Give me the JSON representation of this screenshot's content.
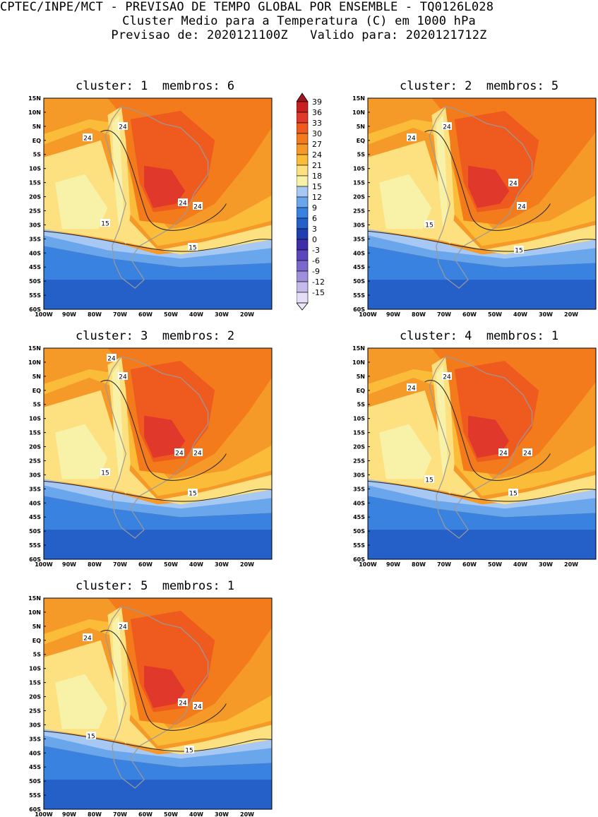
{
  "header": {
    "line1": "CPTEC/INPE/MCT - PREVISAO DE TEMPO GLOBAL POR ENSEMBLE - TQ0126L028",
    "line2": "Cluster Medio para a Temperatura (C) em 1000 hPa",
    "line3": "Previsao de: 2020121100Z   Valido para: 2020121712Z"
  },
  "lat_labels": [
    "15N",
    "10N",
    "5N",
    "EQ",
    "5S",
    "10S",
    "15S",
    "20S",
    "25S",
    "30S",
    "35S",
    "40S",
    "45S",
    "50S",
    "55S",
    "60S"
  ],
  "lon_labels": [
    "100W",
    "90W",
    "80W",
    "70W",
    "60W",
    "50W",
    "40W",
    "30W",
    "20W"
  ],
  "colorbar": {
    "labels": [
      "39",
      "36",
      "33",
      "30",
      "27",
      "24",
      "21",
      "18",
      "15",
      "12",
      "9",
      "6",
      "3",
      "0",
      "-3",
      "-6",
      "-9",
      "-12",
      "-15"
    ],
    "colors": [
      "#a0151d",
      "#c8201f",
      "#e0382a",
      "#ef5a1f",
      "#f47b1c",
      "#f59a28",
      "#fbbc39",
      "#fde07f",
      "#f7f2a8",
      "#a8c8f4",
      "#6aa6ec",
      "#3a82df",
      "#2560c9",
      "#1f3fb0",
      "#3e2ea7",
      "#5b46bd",
      "#7c68cc",
      "#a08fdc",
      "#c6b9ec",
      "#e6ddf7"
    ]
  },
  "panels": [
    {
      "title": "cluster: 1  membros: 6",
      "labels": [
        {
          "t": "24"
        },
        {
          "t": "24"
        },
        {
          "t": "24"
        },
        {
          "t": "24"
        },
        {
          "t": "15"
        },
        {
          "t": "15"
        }
      ]
    },
    {
      "title": "cluster: 2  membros: 5",
      "labels": [
        {
          "t": "24"
        },
        {
          "t": "24"
        },
        {
          "t": "24"
        },
        {
          "t": "24"
        },
        {
          "t": "15"
        },
        {
          "t": "15"
        }
      ]
    },
    {
      "title": "cluster: 3  membros: 2",
      "labels": [
        {
          "t": "24"
        },
        {
          "t": "24"
        },
        {
          "t": "24"
        },
        {
          "t": "24"
        },
        {
          "t": "15"
        },
        {
          "t": "15"
        }
      ]
    },
    {
      "title": "cluster: 4  membros: 1",
      "labels": [
        {
          "t": "24"
        },
        {
          "t": "24"
        },
        {
          "t": "24"
        },
        {
          "t": "24"
        },
        {
          "t": "15"
        },
        {
          "t": "15"
        }
      ]
    },
    {
      "title": "cluster: 5  membros: 1",
      "labels": [
        {
          "t": "24"
        },
        {
          "t": "24"
        },
        {
          "t": "24"
        },
        {
          "t": "24"
        },
        {
          "t": "15"
        },
        {
          "t": "15"
        }
      ]
    }
  ]
}
